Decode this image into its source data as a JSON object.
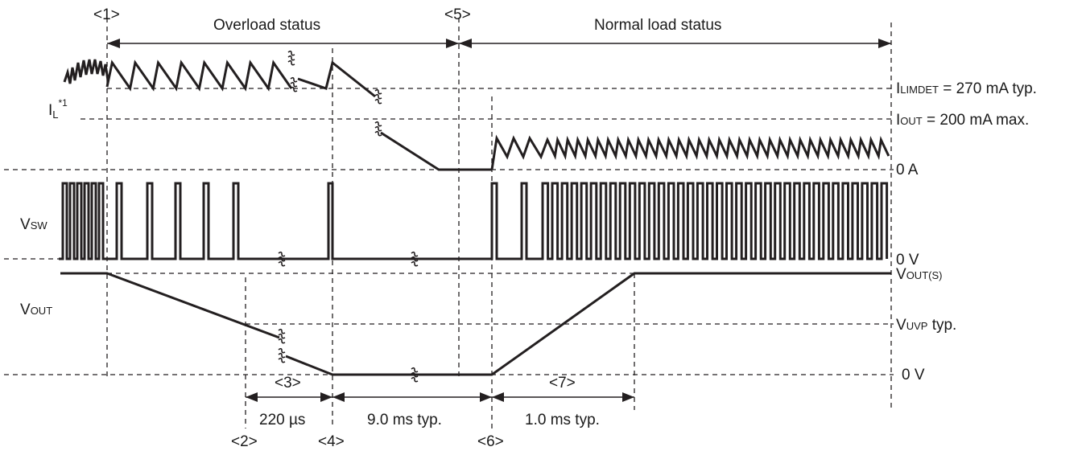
{
  "markers": {
    "m1": "<1>",
    "m2": "<2>",
    "m3": "<3>",
    "m4": "<4>",
    "m5": "<5>",
    "m6": "<6>",
    "m7": "<7>"
  },
  "status": {
    "overload": "Overload status",
    "normal": "Normal load status"
  },
  "signals": {
    "il_main": "I",
    "il_sub": "L",
    "il_sup": "*1",
    "vsw_main": "V",
    "vsw_sub": "SW",
    "vout_main": "V",
    "vout_sub": "OUT"
  },
  "right_labels": {
    "ilimdet_main": "I",
    "ilimdet_sub": "LIMDET",
    "ilimdet_rest": " = 270 mA typ.",
    "iout_main": "I",
    "iout_sub": "OUT",
    "iout_rest": " = 200 mA max.",
    "zero_a": "0 A",
    "zero_v_sw": "0 V",
    "voutS_main": "V",
    "voutS_sub": "OUT(S)",
    "vuvp_main": "V",
    "vuvp_sub": "UVP",
    "vuvp_rest": " typ.",
    "zero_v_out": "0 V"
  },
  "timings": {
    "t3": "220 µs",
    "t5": "9.0 ms typ.",
    "t7": "1.0 ms typ."
  },
  "waveform": {
    "il_overload_peaks": 8,
    "vsw_initial_pulses": 6,
    "vsw_overload_pulses": 4,
    "vsw_restart_pulses": 2,
    "vsw_normal_pulses": 36,
    "il_normal_teeth": 41
  }
}
